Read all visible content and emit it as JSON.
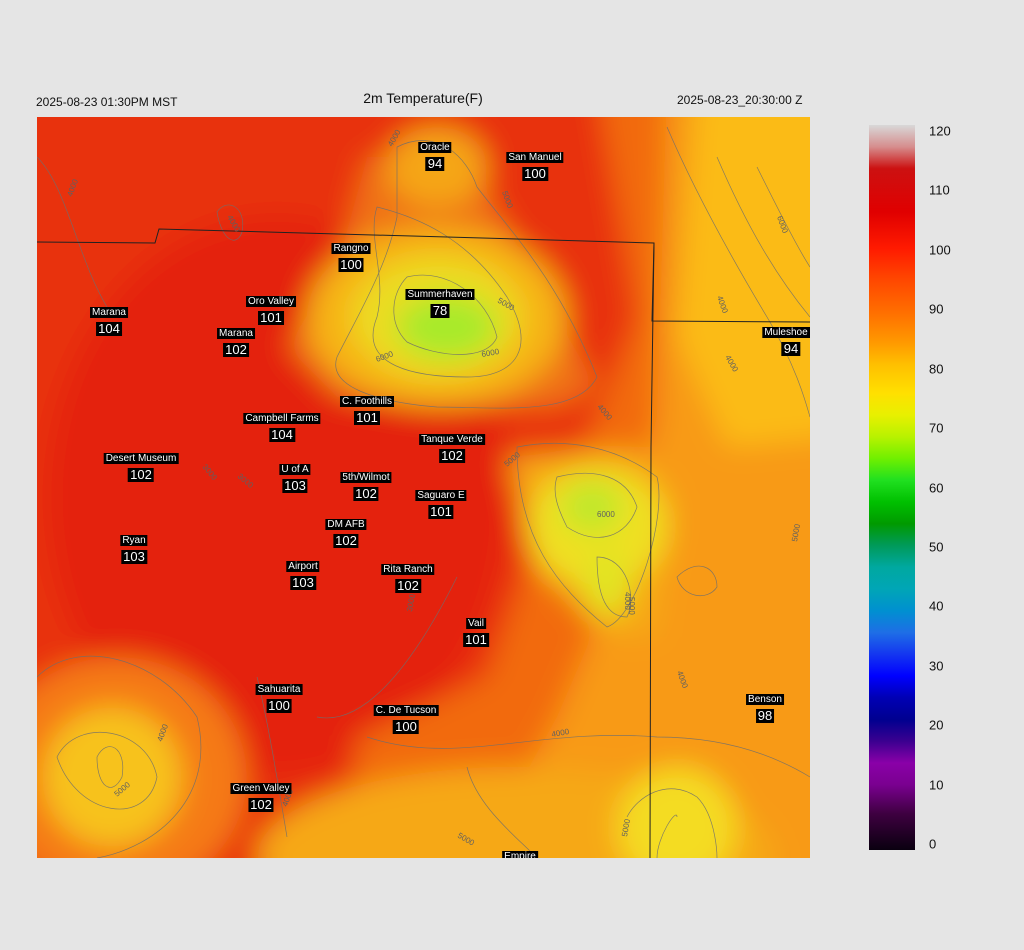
{
  "header": {
    "local_time": "2025-08-23 01:30PM MST",
    "title": "2m Temperature(F)",
    "utc_time": "2025-08-23_20:30:00 Z"
  },
  "stations": [
    {
      "name": "Oracle",
      "value": "94"
    },
    {
      "name": "San Manuel",
      "value": "100"
    },
    {
      "name": "Rangno",
      "value": "100"
    },
    {
      "name": "Summerhaven",
      "value": "78"
    },
    {
      "name": "Marana",
      "value": "104"
    },
    {
      "name": "Oro Valley",
      "value": "101"
    },
    {
      "name": "Marana",
      "value": "102"
    },
    {
      "name": "Muleshoe R",
      "value": "94"
    },
    {
      "name": "C. Foothills",
      "value": "101"
    },
    {
      "name": "Campbell Farms",
      "value": "104"
    },
    {
      "name": "Tanque Verde",
      "value": "102"
    },
    {
      "name": "Desert Museum",
      "value": "102"
    },
    {
      "name": "U of A",
      "value": "103"
    },
    {
      "name": "5th/Wilmot",
      "value": "102"
    },
    {
      "name": "Saguaro E",
      "value": "101"
    },
    {
      "name": "DM AFB",
      "value": "102"
    },
    {
      "name": "Ryan",
      "value": "103"
    },
    {
      "name": "Airport",
      "value": "103"
    },
    {
      "name": "Rita Ranch",
      "value": "102"
    },
    {
      "name": "Vail",
      "value": "101"
    },
    {
      "name": "Sahuarita",
      "value": "100"
    },
    {
      "name": "C. De Tucson",
      "value": "100"
    },
    {
      "name": "Benson",
      "value": "98"
    },
    {
      "name": "Green Valley",
      "value": "102"
    },
    {
      "name": "Empire",
      "value": ""
    }
  ],
  "contour_labels": [
    "4000",
    "3000",
    "4000",
    "4000",
    "5000",
    "6000",
    "5000",
    "6000",
    "4000",
    "5000",
    "6000",
    "4000",
    "4000",
    "5000",
    "4000",
    "4000",
    "5000",
    "6000",
    "5000",
    "5000",
    "4000",
    "3000",
    "4000",
    "5000",
    "4000",
    "3000"
  ],
  "colorbar": {
    "ticks": [
      "120",
      "110",
      "100",
      "90",
      "80",
      "70",
      "60",
      "50",
      "40",
      "30",
      "20",
      "10",
      "0"
    ]
  }
}
